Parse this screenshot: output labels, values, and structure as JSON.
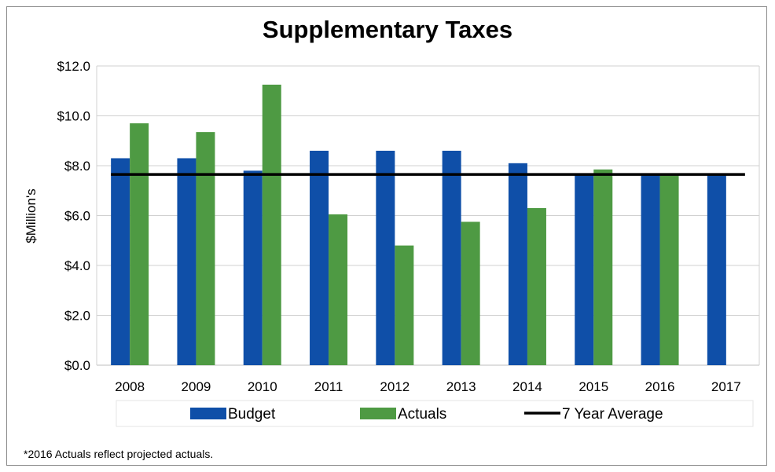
{
  "chart_data": {
    "type": "bar",
    "title": "Supplementary Taxes",
    "ylabel": "$Million's",
    "xlabel": "",
    "categories": [
      "2008",
      "2009",
      "2010",
      "2011",
      "2012",
      "2013",
      "2014",
      "2015",
      "2016",
      "2017"
    ],
    "ylim": [
      0,
      12
    ],
    "yticks": [
      "$0.0",
      "$2.0",
      "$4.0",
      "$6.0",
      "$8.0",
      "$10.0",
      "$12.0"
    ],
    "grid": true,
    "legend_position": "bottom",
    "series": [
      {
        "name": "Budget",
        "color": "#0f4fa8",
        "values": [
          8.3,
          8.3,
          7.8,
          8.6,
          8.6,
          8.6,
          8.1,
          7.7,
          7.7,
          7.7
        ]
      },
      {
        "name": "Actuals",
        "color": "#4e9a43",
        "values": [
          9.7,
          9.35,
          11.25,
          6.05,
          4.8,
          5.75,
          6.3,
          7.85,
          7.7,
          null
        ]
      }
    ],
    "reference_line": {
      "name": "7 Year Average",
      "color": "#000000",
      "value": 7.65
    },
    "footnote": "*2016 Actuals reflect projected actuals."
  }
}
